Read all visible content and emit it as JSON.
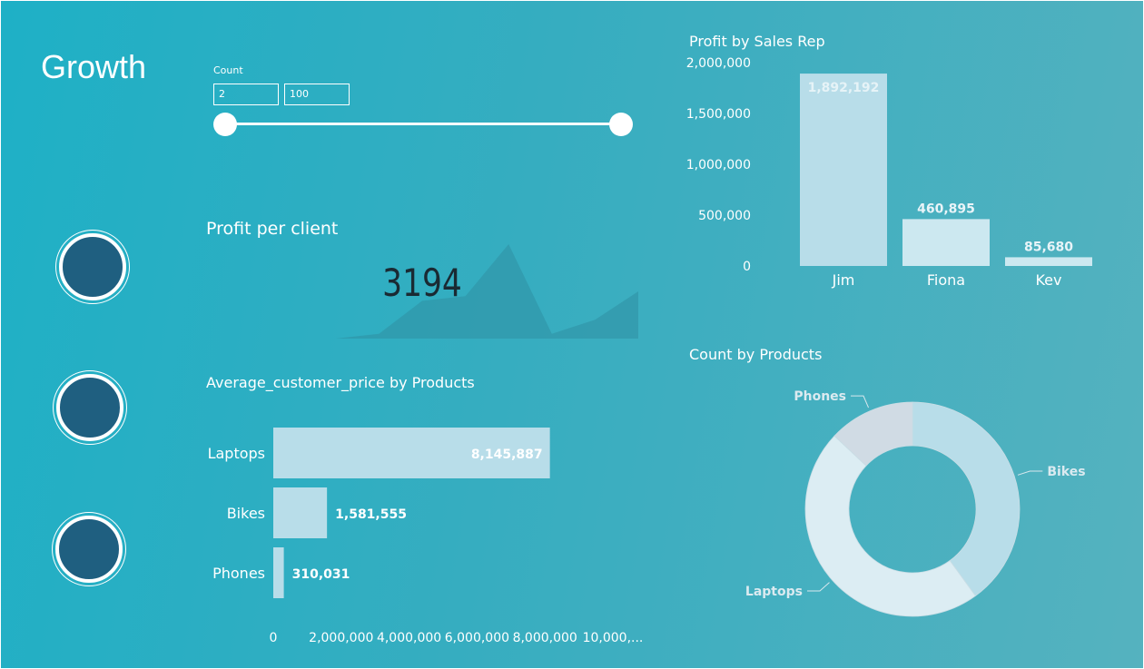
{
  "header": {
    "title": "Growth"
  },
  "slicer": {
    "label": "Count",
    "min_value": "2",
    "max_value": "100"
  },
  "kpi": {
    "title": "Profit per client",
    "value": "3194",
    "sparkline": [
      0,
      0,
      0,
      0,
      0.05,
      0.4,
      0.45,
      1.0,
      0.05,
      0.2,
      0.5
    ]
  },
  "colors": {
    "bar": "#b8dde9",
    "donut_bikes": "#b8dde9",
    "donut_laptops": "#dcedf3",
    "donut_phones": "#d0dbe4",
    "circle": "#1f5f80"
  },
  "chart_data": [
    {
      "type": "bar",
      "title": "Average_customer_price by Products",
      "orientation": "horizontal",
      "categories": [
        "Laptops",
        "Bikes",
        "Phones"
      ],
      "values": [
        8145887,
        1581555,
        310031
      ],
      "data_labels": [
        "8,145,887",
        "1,581,555",
        "310,031"
      ],
      "xlim": [
        0,
        10000000
      ],
      "tick_labels": [
        "0",
        "2,000,000",
        "4,000,000",
        "6,000,000",
        "8,000,000",
        "10,000,..."
      ]
    },
    {
      "type": "bar",
      "title": "Profit by Sales Rep",
      "orientation": "vertical",
      "categories": [
        "Jim",
        "Fiona",
        "Kev"
      ],
      "values": [
        1892192,
        460895,
        85680
      ],
      "data_labels": [
        "1,892,192",
        "460,895",
        "85,680"
      ],
      "ylim": [
        0,
        2000000
      ],
      "tick_labels": [
        "0",
        "500,000",
        "1,000,000",
        "1,500,000",
        "2,000,000"
      ]
    },
    {
      "type": "pie",
      "title": "Count by Products",
      "donut": true,
      "categories": [
        "Bikes",
        "Laptops",
        "Phones"
      ],
      "values": [
        40,
        47,
        13
      ]
    }
  ]
}
